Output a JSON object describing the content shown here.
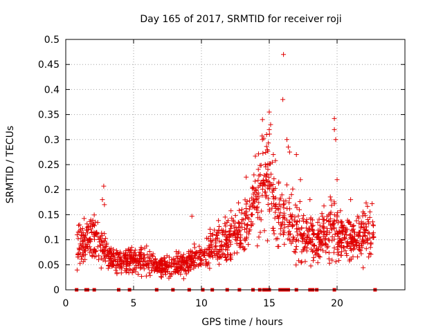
{
  "chart_data": {
    "type": "scatter",
    "title": "Day 165 of 2017, SRMTID for receiver roji",
    "xlabel": "GPS time / hours",
    "ylabel": "SRMTID / TECUs",
    "xlim": [
      0,
      25
    ],
    "ylim": [
      0,
      0.5
    ],
    "xticks": [
      0,
      5,
      10,
      15,
      20
    ],
    "xtick_labels": [
      "0",
      "5",
      "10",
      "15",
      "20"
    ],
    "yticks": [
      0,
      0.05,
      0.1,
      0.15,
      0.2,
      0.25,
      0.3,
      0.35,
      0.4,
      0.45,
      0.5
    ],
    "ytick_labels": [
      "0",
      "0.05",
      "0.1",
      "0.15",
      "0.2",
      "0.25",
      "0.3",
      "0.35",
      "0.4",
      "0.45",
      "0.5"
    ],
    "grid": true,
    "marker": "+",
    "color": "#e00000",
    "trend": [
      [
        0.8,
        0.09
      ],
      [
        1.5,
        0.1
      ],
      [
        2.0,
        0.11
      ],
      [
        2.8,
        0.08
      ],
      [
        3.5,
        0.06
      ],
      [
        4.3,
        0.055
      ],
      [
        5.0,
        0.06
      ],
      [
        5.8,
        0.06
      ],
      [
        6.5,
        0.05
      ],
      [
        7.3,
        0.045
      ],
      [
        8.0,
        0.05
      ],
      [
        8.8,
        0.05
      ],
      [
        9.5,
        0.06
      ],
      [
        10.2,
        0.07
      ],
      [
        11.0,
        0.085
      ],
      [
        11.8,
        0.1
      ],
      [
        12.5,
        0.11
      ],
      [
        13.0,
        0.12
      ],
      [
        13.5,
        0.14
      ],
      [
        14.5,
        0.22
      ],
      [
        15.0,
        0.22
      ],
      [
        15.5,
        0.17
      ],
      [
        16.0,
        0.14
      ],
      [
        16.5,
        0.15
      ],
      [
        17.0,
        0.13
      ],
      [
        17.5,
        0.11
      ],
      [
        18.0,
        0.1
      ],
      [
        18.5,
        0.1
      ],
      [
        19.0,
        0.11
      ],
      [
        19.5,
        0.13
      ],
      [
        20.0,
        0.11
      ],
      [
        20.5,
        0.1
      ],
      [
        21.0,
        0.09
      ],
      [
        21.5,
        0.1
      ],
      [
        22.0,
        0.11
      ],
      [
        22.7,
        0.12
      ]
    ],
    "spikes": [
      [
        2.8,
        0.207
      ],
      [
        2.7,
        0.18
      ],
      [
        2.85,
        0.17
      ],
      [
        9.3,
        0.147
      ],
      [
        13.3,
        0.225
      ],
      [
        14.5,
        0.34
      ],
      [
        14.5,
        0.3
      ],
      [
        14.8,
        0.31
      ],
      [
        15.0,
        0.355
      ],
      [
        15.1,
        0.33
      ],
      [
        15.0,
        0.32
      ],
      [
        15.3,
        0.27
      ],
      [
        16.05,
        0.47
      ],
      [
        16.0,
        0.38
      ],
      [
        16.3,
        0.3
      ],
      [
        16.4,
        0.285
      ],
      [
        16.5,
        0.275
      ],
      [
        17.0,
        0.27
      ],
      [
        17.3,
        0.22
      ],
      [
        18.0,
        0.18
      ],
      [
        19.8,
        0.342
      ],
      [
        19.8,
        0.32
      ],
      [
        19.9,
        0.3
      ],
      [
        20.0,
        0.22
      ],
      [
        21.0,
        0.18
      ]
    ],
    "data_gaps_at_zero": [
      0.8,
      1.5,
      1.6,
      2.1,
      3.9,
      4.7,
      6.7,
      7.9,
      9.1,
      10.1,
      10.8,
      11.9,
      12.8,
      13.8,
      14.3,
      14.6,
      14.8,
      15.0,
      15.8,
      15.9,
      16.0,
      16.1,
      16.2,
      16.4,
      17.0,
      18.0,
      18.2,
      18.5,
      19.8,
      22.8
    ]
  }
}
